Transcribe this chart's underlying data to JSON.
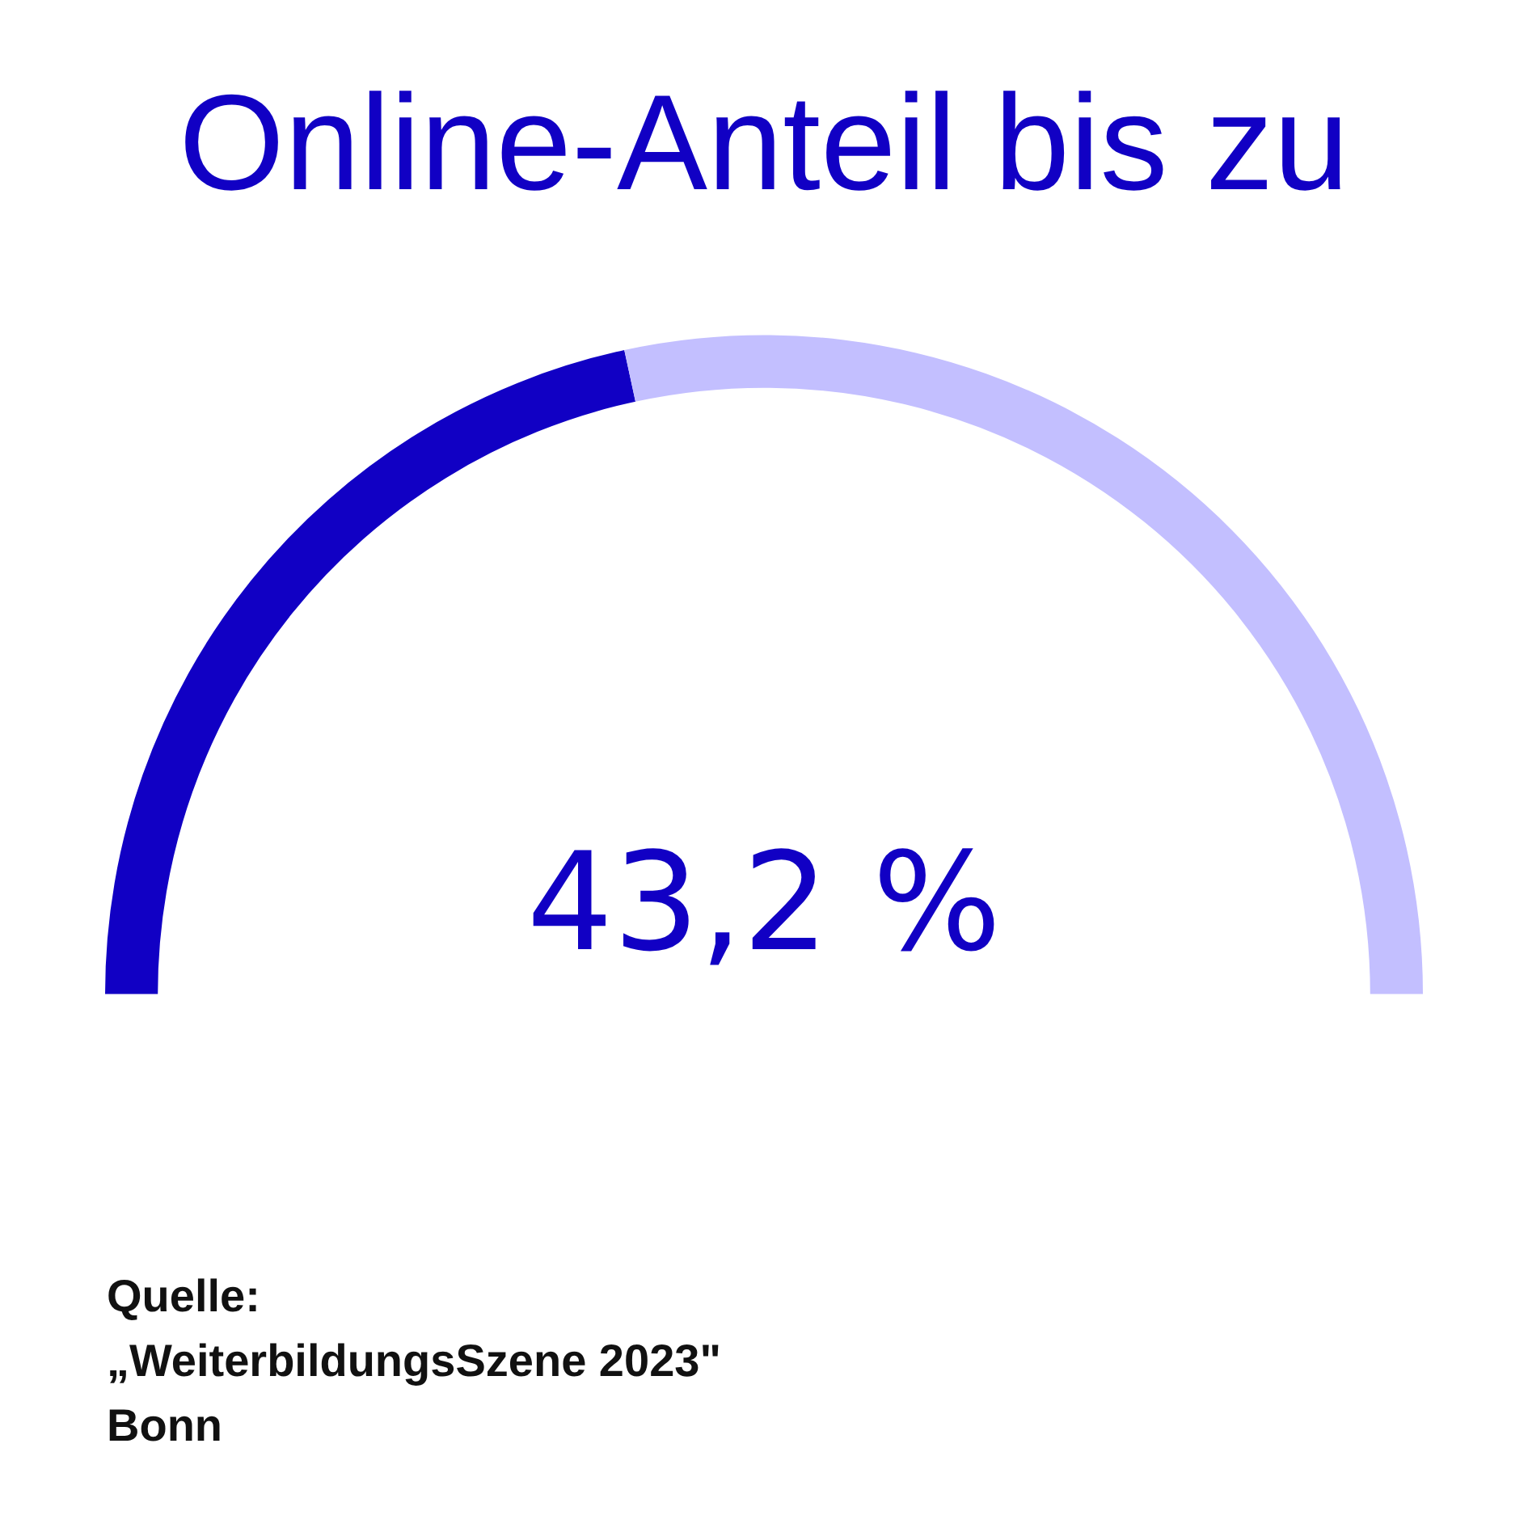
{
  "chart_data": {
    "type": "donut",
    "title": "Online-Anteil bis zu",
    "categories": [
      null,
      null
    ],
    "values": [
      43.2,
      56.8
    ],
    "colors": [
      "#1100c4",
      "#c3bfff"
    ],
    "value_labels": [
      "43,2 %",
      null
    ],
    "annotations": [
      "Quelle:",
      "„WeiterbildungsSzene 2023\"",
      "Bonn"
    ]
  }
}
